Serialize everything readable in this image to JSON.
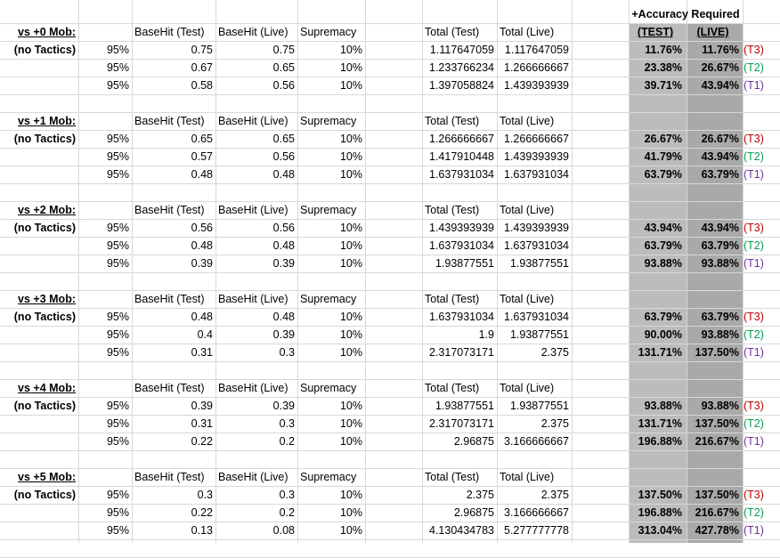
{
  "top_header": "+Accuracy Required",
  "col_headers": {
    "basehit_test": "BaseHit (Test)",
    "basehit_live": "BaseHit (Live)",
    "supremacy": "Supremacy",
    "total_test": "Total (Test)",
    "total_live": "Total (Live)",
    "acc_test": "(TEST)",
    "acc_live": "(LIVE)"
  },
  "colors": {
    "t3": "#c00000",
    "t2": "#00a050",
    "t1": "#7030a0",
    "shade_test": "#bcbcbc",
    "shade_live": "#a9a9a9"
  },
  "blocks": [
    {
      "title": "vs +0 Mob:",
      "subtitle": "(no Tactics)",
      "rows": [
        {
          "pct": "95%",
          "bh_test": "0.75",
          "bh_live": "0.75",
          "sup": "10%",
          "tot_test": "1.117647059",
          "tot_live": "1.117647059",
          "acc_test": "11.76%",
          "acc_live": "11.76%",
          "tier": "(T3)"
        },
        {
          "pct": "95%",
          "bh_test": "0.67",
          "bh_live": "0.65",
          "sup": "10%",
          "tot_test": "1.233766234",
          "tot_live": "1.266666667",
          "acc_test": "23.38%",
          "acc_live": "26.67%",
          "tier": "(T2)"
        },
        {
          "pct": "95%",
          "bh_test": "0.58",
          "bh_live": "0.56",
          "sup": "10%",
          "tot_test": "1.397058824",
          "tot_live": "1.439393939",
          "acc_test": "39.71%",
          "acc_live": "43.94%",
          "tier": "(T1)"
        }
      ]
    },
    {
      "title": "vs +1 Mob:",
      "subtitle": "(no Tactics)",
      "rows": [
        {
          "pct": "95%",
          "bh_test": "0.65",
          "bh_live": "0.65",
          "sup": "10%",
          "tot_test": "1.266666667",
          "tot_live": "1.266666667",
          "acc_test": "26.67%",
          "acc_live": "26.67%",
          "tier": "(T3)"
        },
        {
          "pct": "95%",
          "bh_test": "0.57",
          "bh_live": "0.56",
          "sup": "10%",
          "tot_test": "1.417910448",
          "tot_live": "1.439393939",
          "acc_test": "41.79%",
          "acc_live": "43.94%",
          "tier": "(T2)"
        },
        {
          "pct": "95%",
          "bh_test": "0.48",
          "bh_live": "0.48",
          "sup": "10%",
          "tot_test": "1.637931034",
          "tot_live": "1.637931034",
          "acc_test": "63.79%",
          "acc_live": "63.79%",
          "tier": "(T1)"
        }
      ]
    },
    {
      "title": "vs +2 Mob:",
      "subtitle": "(no Tactics)",
      "rows": [
        {
          "pct": "95%",
          "bh_test": "0.56",
          "bh_live": "0.56",
          "sup": "10%",
          "tot_test": "1.439393939",
          "tot_live": "1.439393939",
          "acc_test": "43.94%",
          "acc_live": "43.94%",
          "tier": "(T3)"
        },
        {
          "pct": "95%",
          "bh_test": "0.48",
          "bh_live": "0.48",
          "sup": "10%",
          "tot_test": "1.637931034",
          "tot_live": "1.637931034",
          "acc_test": "63.79%",
          "acc_live": "63.79%",
          "tier": "(T2)"
        },
        {
          "pct": "95%",
          "bh_test": "0.39",
          "bh_live": "0.39",
          "sup": "10%",
          "tot_test": "1.93877551",
          "tot_live": "1.93877551",
          "acc_test": "93.88%",
          "acc_live": "93.88%",
          "tier": "(T1)"
        }
      ]
    },
    {
      "title": "vs +3 Mob:",
      "subtitle": "(no Tactics)",
      "rows": [
        {
          "pct": "95%",
          "bh_test": "0.48",
          "bh_live": "0.48",
          "sup": "10%",
          "tot_test": "1.637931034",
          "tot_live": "1.637931034",
          "acc_test": "63.79%",
          "acc_live": "63.79%",
          "tier": "(T3)"
        },
        {
          "pct": "95%",
          "bh_test": "0.4",
          "bh_live": "0.39",
          "sup": "10%",
          "tot_test": "1.9",
          "tot_live": "1.93877551",
          "acc_test": "90.00%",
          "acc_live": "93.88%",
          "tier": "(T2)"
        },
        {
          "pct": "95%",
          "bh_test": "0.31",
          "bh_live": "0.3",
          "sup": "10%",
          "tot_test": "2.317073171",
          "tot_live": "2.375",
          "acc_test": "131.71%",
          "acc_live": "137.50%",
          "tier": "(T1)"
        }
      ]
    },
    {
      "title": "vs +4 Mob:",
      "subtitle": "(no Tactics)",
      "rows": [
        {
          "pct": "95%",
          "bh_test": "0.39",
          "bh_live": "0.39",
          "sup": "10%",
          "tot_test": "1.93877551",
          "tot_live": "1.93877551",
          "acc_test": "93.88%",
          "acc_live": "93.88%",
          "tier": "(T3)"
        },
        {
          "pct": "95%",
          "bh_test": "0.31",
          "bh_live": "0.3",
          "sup": "10%",
          "tot_test": "2.317073171",
          "tot_live": "2.375",
          "acc_test": "131.71%",
          "acc_live": "137.50%",
          "tier": "(T2)"
        },
        {
          "pct": "95%",
          "bh_test": "0.22",
          "bh_live": "0.2",
          "sup": "10%",
          "tot_test": "2.96875",
          "tot_live": "3.166666667",
          "acc_test": "196.88%",
          "acc_live": "216.67%",
          "tier": "(T1)"
        }
      ]
    },
    {
      "title": "vs +5 Mob:",
      "subtitle": "(no Tactics)",
      "rows": [
        {
          "pct": "95%",
          "bh_test": "0.3",
          "bh_live": "0.3",
          "sup": "10%",
          "tot_test": "2.375",
          "tot_live": "2.375",
          "acc_test": "137.50%",
          "acc_live": "137.50%",
          "tier": "(T3)"
        },
        {
          "pct": "95%",
          "bh_test": "0.22",
          "bh_live": "0.2",
          "sup": "10%",
          "tot_test": "2.96875",
          "tot_live": "3.166666667",
          "acc_test": "196.88%",
          "acc_live": "216.67%",
          "tier": "(T2)"
        },
        {
          "pct": "95%",
          "bh_test": "0.13",
          "bh_live": "0.08",
          "sup": "10%",
          "tot_test": "4.130434783",
          "tot_live": "5.277777778",
          "acc_test": "313.04%",
          "acc_live": "427.78%",
          "tier": "(T1)"
        }
      ]
    }
  ]
}
